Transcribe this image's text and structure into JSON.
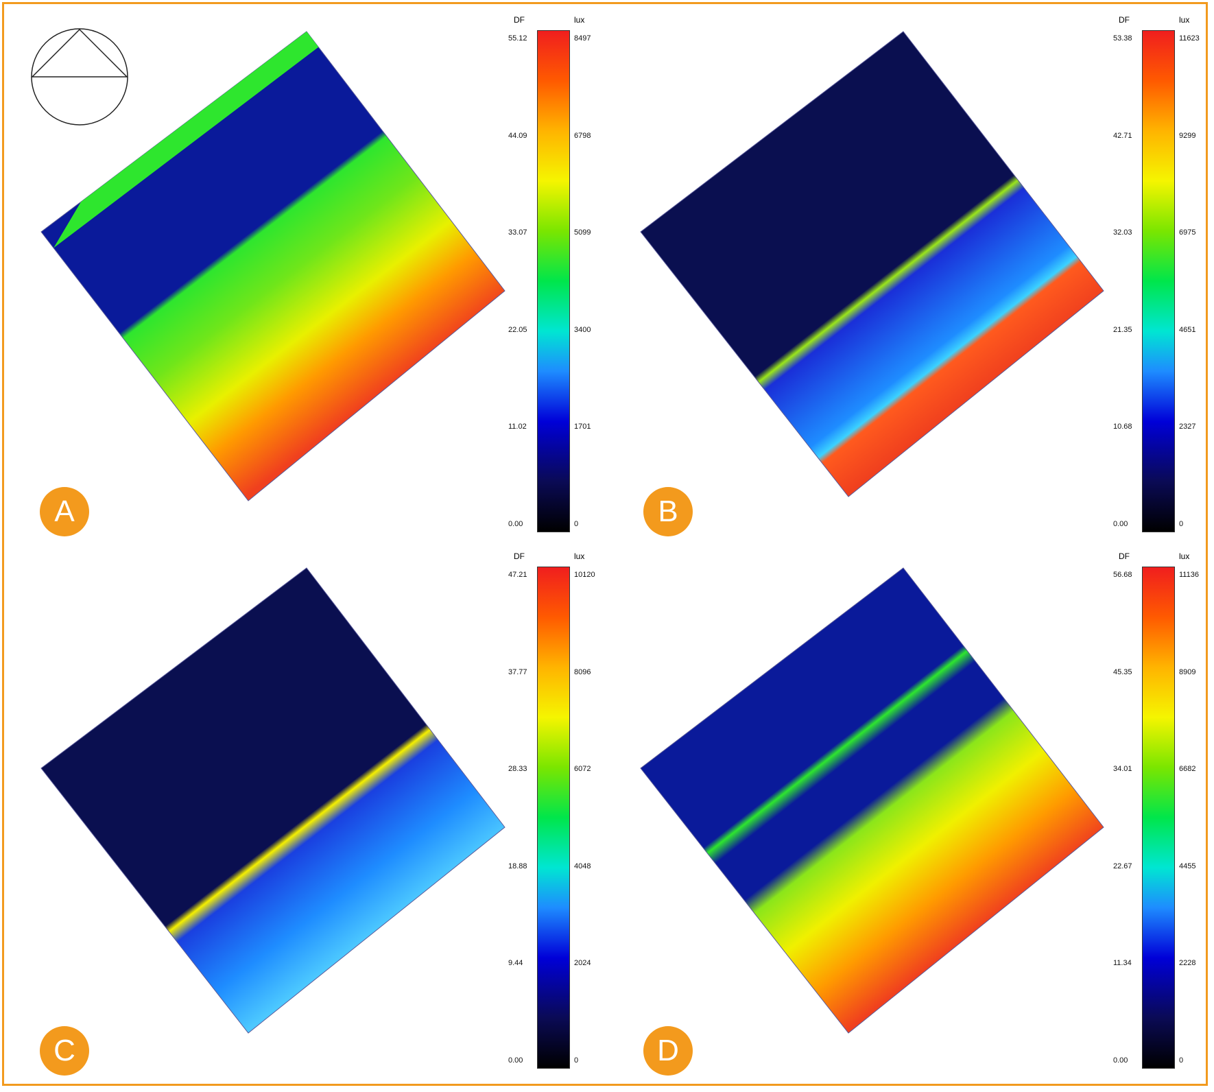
{
  "colors": {
    "frame": "#f29a1e",
    "badge": "#f39a1d",
    "scale_low": "#000000",
    "scale_high": "#f01e1e"
  },
  "orientation_icon": "circle-with-triangle-icon",
  "chart_data": [
    {
      "type": "heatmap",
      "panel": "A",
      "scale_headers": [
        "DF",
        "lux"
      ],
      "df_ticks": [
        "55.12",
        "44.09",
        "33.07",
        "22.05",
        "11.02",
        "0.00"
      ],
      "lux_ticks": [
        "8497",
        "6798",
        "5099",
        "3400",
        "1701",
        "0"
      ],
      "df_range": [
        0,
        55.12
      ],
      "lux_range": [
        0,
        8497
      ]
    },
    {
      "type": "heatmap",
      "panel": "B",
      "scale_headers": [
        "DF",
        "lux"
      ],
      "df_ticks": [
        "53.38",
        "42.71",
        "32.03",
        "21.35",
        "10.68",
        "0.00"
      ],
      "lux_ticks": [
        "11623",
        "9299",
        "6975",
        "4651",
        "2327",
        "0"
      ],
      "df_range": [
        0,
        53.38
      ],
      "lux_range": [
        0,
        11623
      ]
    },
    {
      "type": "heatmap",
      "panel": "C",
      "scale_headers": [
        "DF",
        "lux"
      ],
      "df_ticks": [
        "47.21",
        "37.77",
        "28.33",
        "18.88",
        "9.44",
        "0.00"
      ],
      "lux_ticks": [
        "10120",
        "8096",
        "6072",
        "4048",
        "2024",
        "0"
      ],
      "df_range": [
        0,
        47.21
      ],
      "lux_range": [
        0,
        10120
      ]
    },
    {
      "type": "heatmap",
      "panel": "D",
      "scale_headers": [
        "DF",
        "lux"
      ],
      "df_ticks": [
        "56.68",
        "45.35",
        "34.01",
        "22.67",
        "11.34",
        "0.00"
      ],
      "lux_ticks": [
        "11136",
        "8909",
        "6682",
        "4455",
        "2228",
        "0"
      ],
      "df_range": [
        0,
        56.68
      ],
      "lux_range": [
        0,
        11136
      ]
    }
  ]
}
